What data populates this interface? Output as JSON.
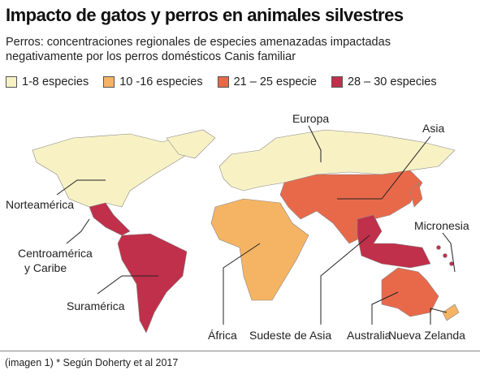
{
  "header": {
    "title": "Impacto de gatos y perros en animales silvestres",
    "subtitle": [
      "Perros: concentraciones regionales de especies amenazadas impactadas",
      "negativamente por los perros domésticos Canis familiar"
    ]
  },
  "legend": [
    {
      "label": "1-8 especies",
      "color": "#f8f1c4"
    },
    {
      "label": "10 -16 especies",
      "color": "#f5b463"
    },
    {
      "label": "21 – 25 especie",
      "color": "#e8694a"
    },
    {
      "label": "28 – 30 especies",
      "color": "#c0304a"
    }
  ],
  "regions": [
    {
      "label": "Norteamérica",
      "color": "#f8f1c4"
    },
    {
      "label": "Europa",
      "color": "#f8f1c4"
    },
    {
      "label": "Asia",
      "color": "#e8694a"
    },
    {
      "label": "Centroamérica y Caribe",
      "color": "#c0304a"
    },
    {
      "label": "Suramérica",
      "color": "#c0304a"
    },
    {
      "label": "África",
      "color": "#f5b463"
    },
    {
      "label": "Sudeste de Asia",
      "color": "#c0304a"
    },
    {
      "label": "Australia",
      "color": "#e8694a"
    },
    {
      "label": "Nueva Zelanda",
      "color": "#f5b463"
    },
    {
      "label": "Micronesia",
      "color": "#c0304a"
    }
  ],
  "footer": "(imagen 1) * Según Doherty et al 2017"
}
